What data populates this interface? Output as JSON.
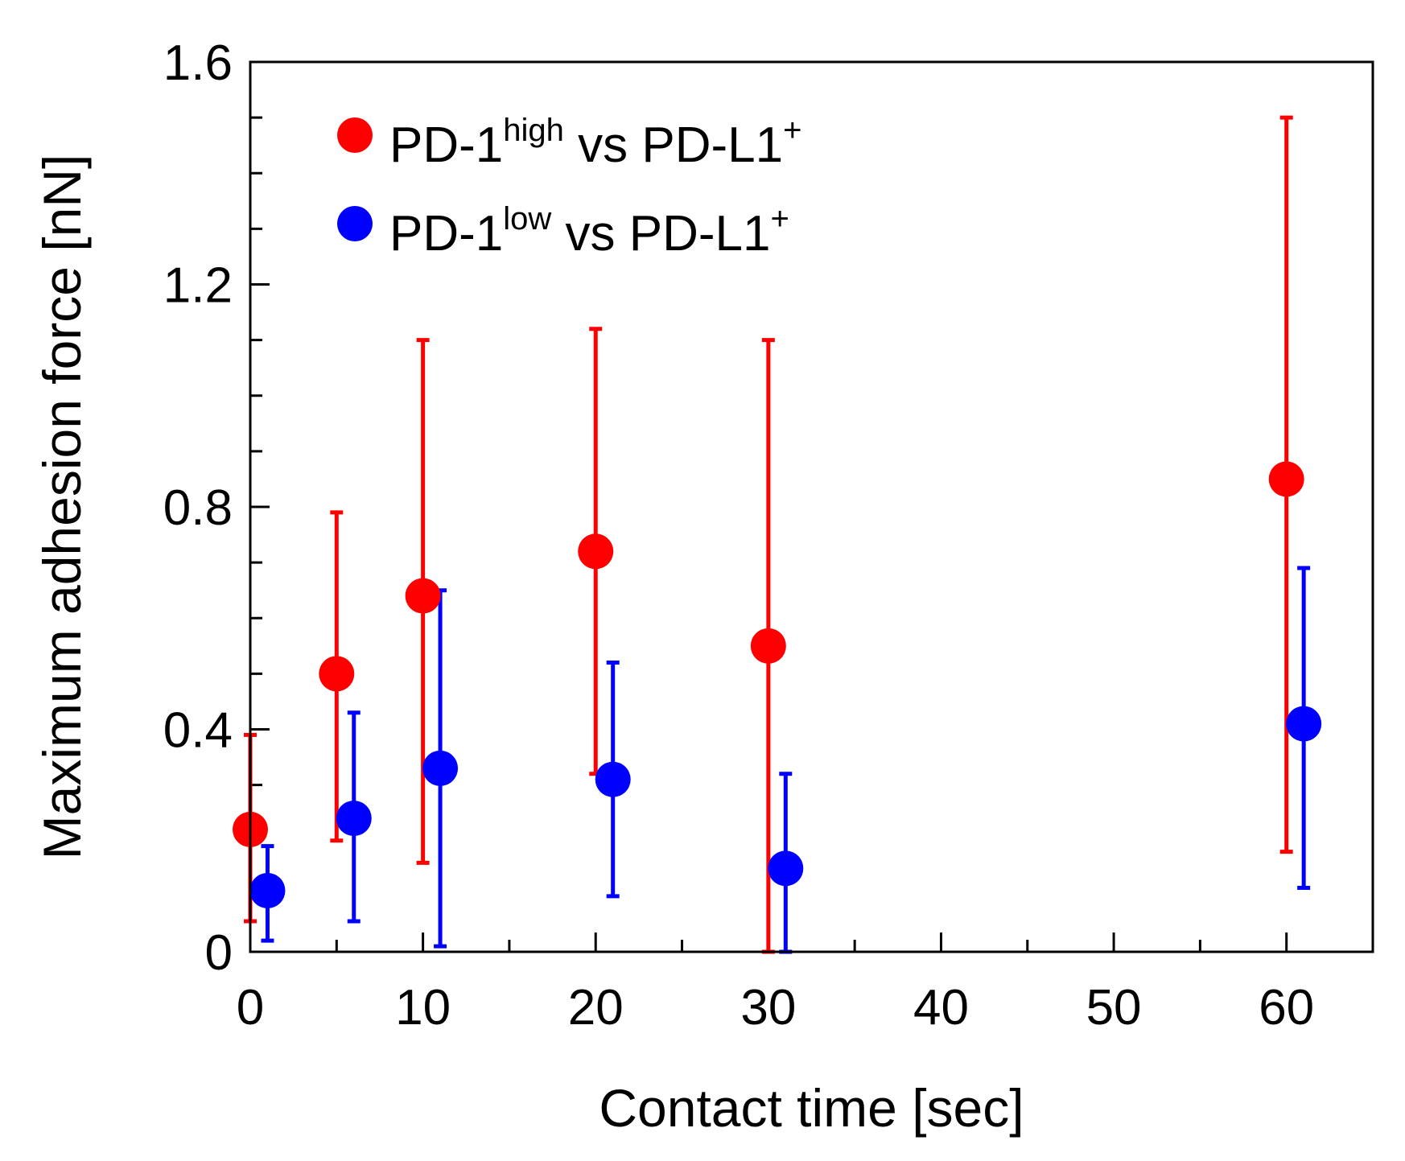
{
  "chart_data": {
    "type": "scatter",
    "title": "",
    "xlabel": "Contact time [sec]",
    "ylabel": "Maximum adhesion force [nN]",
    "xlim": [
      0,
      65
    ],
    "ylim": [
      0,
      1.6
    ],
    "xticks": [
      0,
      10,
      20,
      30,
      40,
      50,
      60
    ],
    "xtick_labels": [
      "0",
      "10",
      "20",
      "30",
      "40",
      "50",
      "60"
    ],
    "yticks": [
      0,
      0.4,
      0.8,
      1.2,
      1.6
    ],
    "ytick_labels": [
      "0",
      "0.4",
      "0.8",
      "1.2",
      "1.6"
    ],
    "x_minor_step": 5,
    "y_minor_step": 0.1,
    "grid": false,
    "legend_position": "top-left",
    "series": [
      {
        "name": "PD-1high vs PD-L1+",
        "legend_parts": {
          "base": "PD-1",
          "sup1": "high",
          "mid": " vs PD-L1",
          "sup2": "+"
        },
        "color": "#ff0000",
        "points": [
          {
            "x": 0,
            "y": 0.22,
            "err_low": 0.055,
            "err_high": 0.39
          },
          {
            "x": 5,
            "y": 0.5,
            "err_low": 0.2,
            "err_high": 0.79
          },
          {
            "x": 10,
            "y": 0.64,
            "err_low": 0.16,
            "err_high": 1.1
          },
          {
            "x": 20,
            "y": 0.72,
            "err_low": 0.32,
            "err_high": 1.12
          },
          {
            "x": 30,
            "y": 0.55,
            "err_low": 0.0,
            "err_high": 1.1
          },
          {
            "x": 60,
            "y": 0.85,
            "err_low": 0.18,
            "err_high": 1.5
          }
        ]
      },
      {
        "name": "PD-1low vs PD-L1+",
        "legend_parts": {
          "base": "PD-1",
          "sup1": "low",
          "mid": " vs PD-L1",
          "sup2": "+"
        },
        "color": "#0000ff",
        "points": [
          {
            "x": 1,
            "y": 0.11,
            "err_low": 0.02,
            "err_high": 0.19
          },
          {
            "x": 6,
            "y": 0.24,
            "err_low": 0.055,
            "err_high": 0.43
          },
          {
            "x": 11,
            "y": 0.33,
            "err_low": 0.01,
            "err_high": 0.65
          },
          {
            "x": 21,
            "y": 0.31,
            "err_low": 0.1,
            "err_high": 0.52
          },
          {
            "x": 31,
            "y": 0.15,
            "err_low": 0.0,
            "err_high": 0.32
          },
          {
            "x": 61,
            "y": 0.41,
            "err_low": 0.115,
            "err_high": 0.69
          }
        ]
      }
    ]
  }
}
